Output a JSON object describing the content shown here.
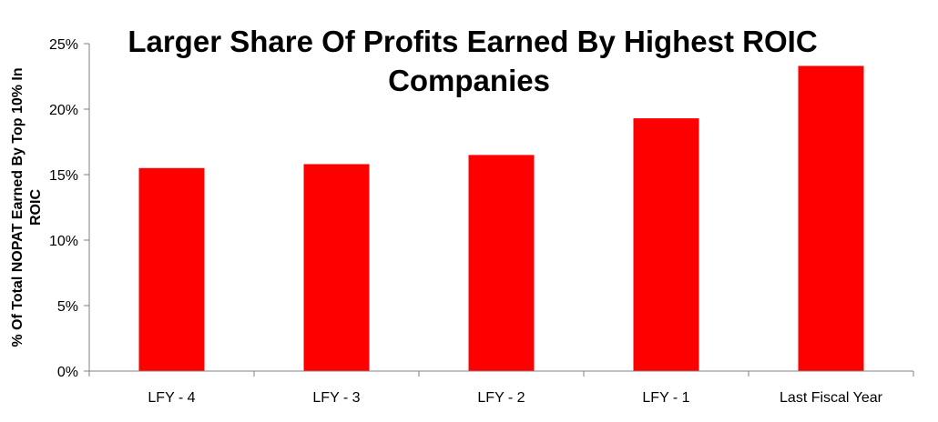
{
  "chart_data": {
    "type": "bar",
    "title_lines": [
      "Larger Share Of Profits Earned By Highest ROIC",
      "Companies"
    ],
    "ylabel_lines": [
      "% Of Total NOPAT Earned By Top 10% In",
      "ROIC"
    ],
    "xlabel": "",
    "categories": [
      "LFY - 4",
      "LFY - 3",
      "LFY - 2",
      "LFY - 1",
      "Last Fiscal Year"
    ],
    "values": [
      15.5,
      15.8,
      16.5,
      19.3,
      23.3
    ],
    "ylim": [
      0,
      25
    ],
    "yticks": [
      0,
      5,
      10,
      15,
      20,
      25
    ],
    "ytick_labels": [
      "0%",
      "5%",
      "10%",
      "15%",
      "20%",
      "25%"
    ],
    "bar_color": "#ff0000",
    "grid": false,
    "legend": "none"
  }
}
